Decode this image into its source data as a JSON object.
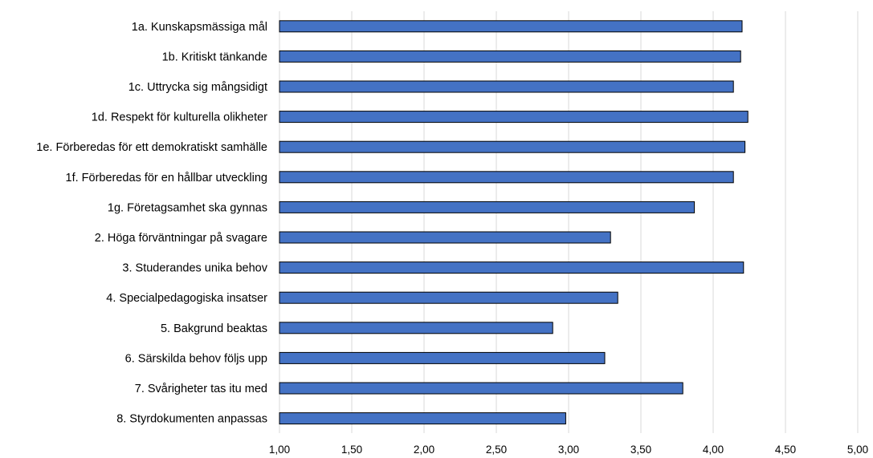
{
  "chart_data": {
    "type": "bar",
    "orientation": "horizontal",
    "title": "",
    "xlabel": "",
    "ylabel": "",
    "categories": [
      "1a. Kunskapsmässiga mål",
      "1b. Kritiskt tänkande",
      "1c. Uttrycka sig mångsidigt",
      "1d. Respekt för kulturella olikheter",
      "1e. Förberedas för ett demokratiskt samhälle",
      "1f. Förberedas för en hållbar utveckling",
      "1g. Företagsamhet ska gynnas",
      "2. Höga förväntningar på svagare",
      "3. Studerandes unika behov",
      "4. Specialpedagogiska insatser",
      "5. Bakgrund beaktas",
      "6. Särskilda behov följs upp",
      "7. Svårigheter tas itu med",
      "8. Styrdokumenten anpassas"
    ],
    "values": [
      4.2,
      4.19,
      4.14,
      4.24,
      4.22,
      4.14,
      3.87,
      3.29,
      4.21,
      3.34,
      2.89,
      3.25,
      3.79,
      2.98
    ],
    "xlim": [
      1.0,
      5.0
    ],
    "xticks": [
      "1,00",
      "1,50",
      "2,00",
      "2,50",
      "3,00",
      "3,50",
      "4,00",
      "4,50",
      "5,00"
    ],
    "grid": "vertical",
    "legend": "none",
    "bar_color": "#4472c4",
    "bar_edge_color": "#000000",
    "grid_color": "#d9d9d9"
  }
}
